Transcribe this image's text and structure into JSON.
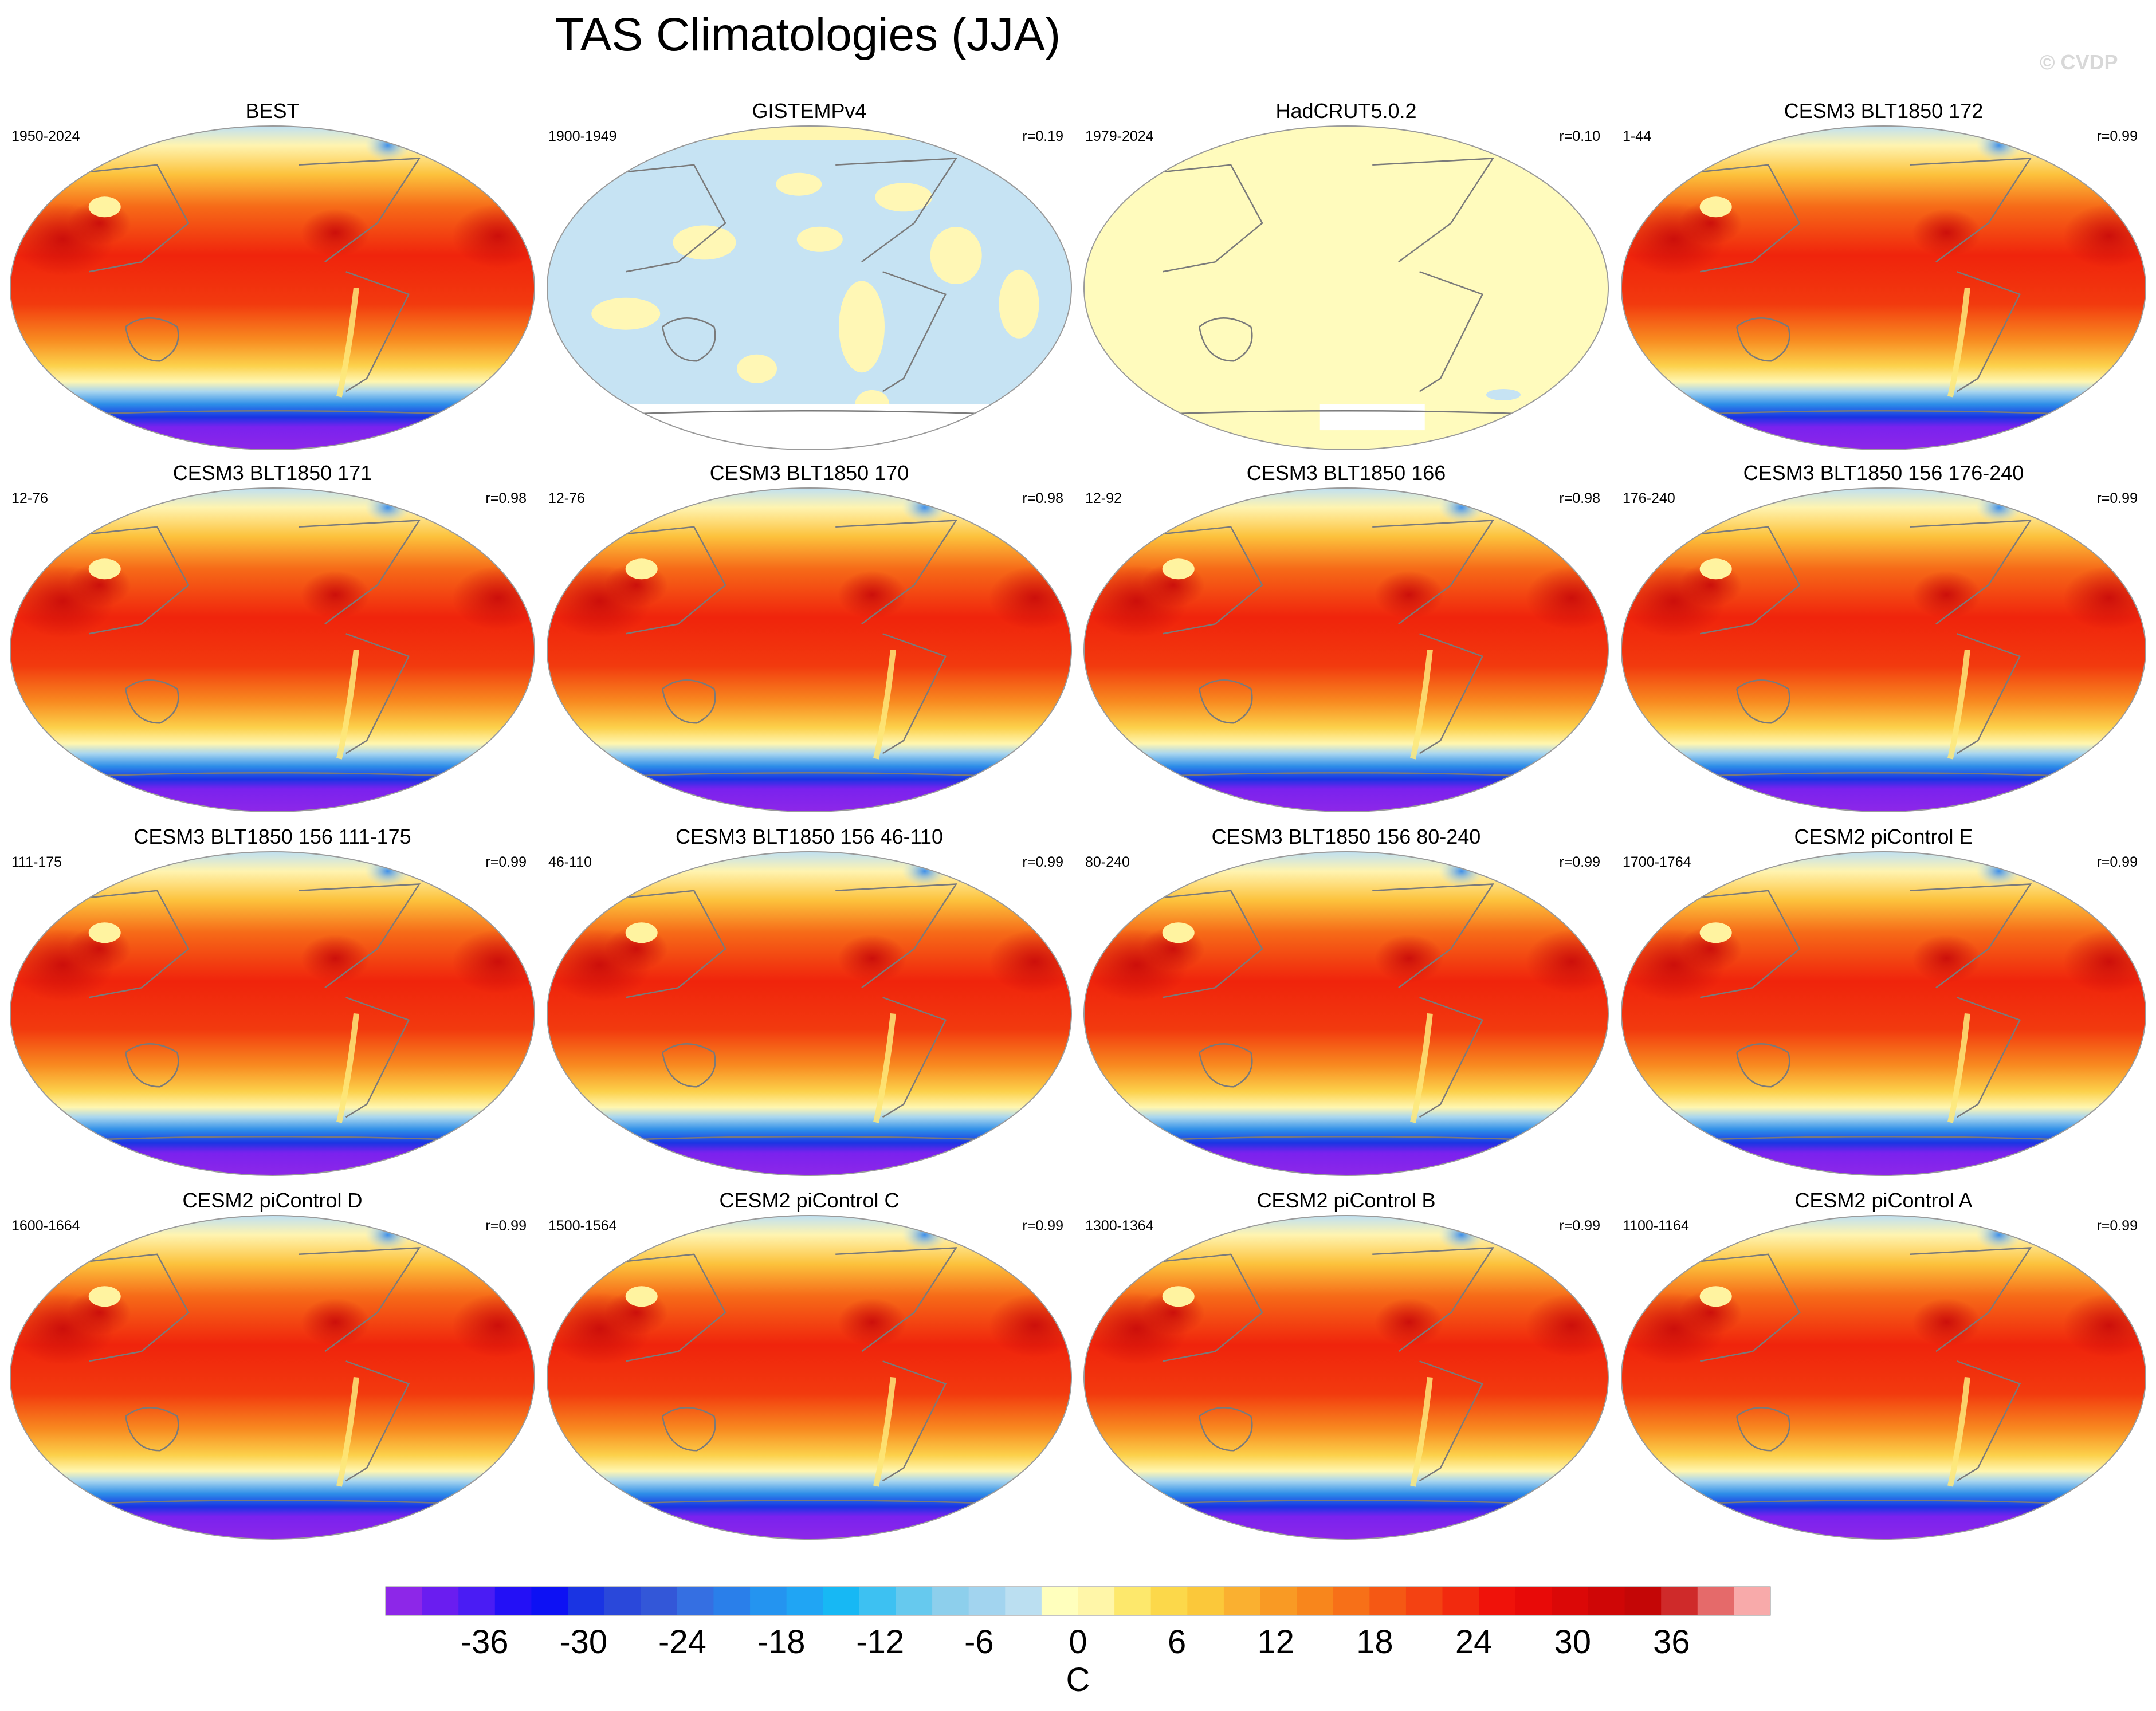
{
  "watermark": "© CVDP",
  "chart_data": {
    "type": "heatmap",
    "title": "TAS Climatologies (JJA)",
    "variable": "TAS",
    "season": "JJA",
    "projection": "Robinson-style global maps",
    "panels": [
      {
        "title": "BEST",
        "years": "1950-2024",
        "r": "",
        "pattern": "climatology"
      },
      {
        "title": "GISTEMPv4",
        "years": "1900-1949",
        "r": "r=0.19",
        "pattern": "anomaly"
      },
      {
        "title": "HadCRUT5.0.2",
        "years": "1979-2024",
        "r": "r=0.10",
        "pattern": "near-zero"
      },
      {
        "title": "CESM3 BLT1850 172",
        "years": "1-44",
        "r": "r=0.99",
        "pattern": "climatology"
      },
      {
        "title": "CESM3 BLT1850 171",
        "years": "12-76",
        "r": "r=0.98",
        "pattern": "climatology"
      },
      {
        "title": "CESM3 BLT1850 170",
        "years": "12-76",
        "r": "r=0.98",
        "pattern": "climatology"
      },
      {
        "title": "CESM3 BLT1850 166",
        "years": "12-92",
        "r": "r=0.98",
        "pattern": "climatology"
      },
      {
        "title": "CESM3 BLT1850 156 176-240",
        "years": "176-240",
        "r": "r=0.99",
        "pattern": "climatology"
      },
      {
        "title": "CESM3 BLT1850 156 111-175",
        "years": "111-175",
        "r": "r=0.99",
        "pattern": "climatology"
      },
      {
        "title": "CESM3 BLT1850 156 46-110",
        "years": "46-110",
        "r": "r=0.99",
        "pattern": "climatology"
      },
      {
        "title": "CESM3 BLT1850 156 80-240",
        "years": "80-240",
        "r": "r=0.99",
        "pattern": "climatology"
      },
      {
        "title": "CESM2 piControl E",
        "years": "1700-1764",
        "r": "r=0.99",
        "pattern": "climatology"
      },
      {
        "title": "CESM2 piControl D",
        "years": "1600-1664",
        "r": "r=0.99",
        "pattern": "climatology"
      },
      {
        "title": "CESM2 piControl C",
        "years": "1500-1564",
        "r": "r=0.99",
        "pattern": "climatology"
      },
      {
        "title": "CESM2 piControl B",
        "years": "1300-1364",
        "r": "r=0.99",
        "pattern": "climatology"
      },
      {
        "title": "CESM2 piControl A",
        "years": "1100-1164",
        "r": "r=0.99",
        "pattern": "climatology"
      }
    ],
    "colorbar": {
      "unit": "C",
      "range": [
        -42,
        42
      ],
      "step": 2,
      "tick_labels": [
        "-36",
        "-30",
        "-24",
        "-18",
        "-12",
        "-6",
        "0",
        "6",
        "12",
        "18",
        "24",
        "30",
        "36"
      ],
      "colors": [
        "#8d27e8",
        "#6a1df0",
        "#4a1cf4",
        "#2310f6",
        "#0d11f4",
        "#1a34e3",
        "#2a48da",
        "#3357d8",
        "#356fe2",
        "#2a7fea",
        "#2494f0",
        "#20a5f4",
        "#17b8f4",
        "#3dc1f2",
        "#66c9ee",
        "#8dcfec",
        "#a2d4ef",
        "#bbdff1",
        "#ffffbd",
        "#fff6a8",
        "#fde86c",
        "#fcd84a",
        "#fbc83a",
        "#fab030",
        "#f99a24",
        "#f8861c",
        "#f77018",
        "#f55814",
        "#f44212",
        "#f22a0e",
        "#f0120a",
        "#e80a08",
        "#db0807",
        "#cf0606",
        "#c40606",
        "#cf2a2a",
        "#e56a6a",
        "#f8aaaa"
      ]
    }
  }
}
